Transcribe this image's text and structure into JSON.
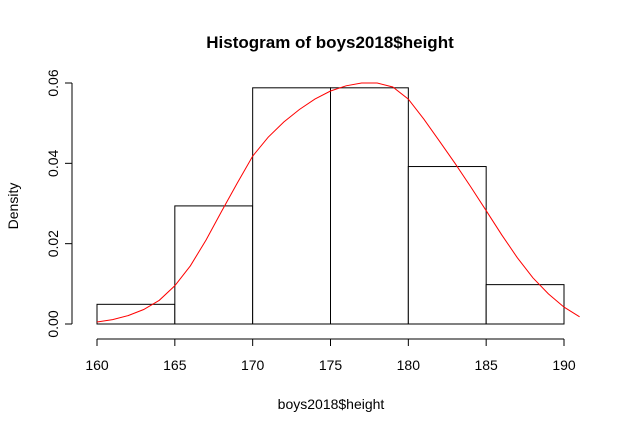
{
  "chart_data": {
    "type": "bar",
    "title": "Histogram of boys2018$height",
    "xlabel": "boys2018$height",
    "ylabel": "Density",
    "xlim": [
      159,
      191
    ],
    "ylim": [
      0,
      0.06
    ],
    "x_ticks": [
      "160",
      "165",
      "170",
      "175",
      "180",
      "185",
      "190"
    ],
    "y_ticks": [
      "0.00",
      "0.02",
      "0.04",
      "0.06"
    ],
    "bins": [
      {
        "from": 160,
        "to": 165,
        "density": 0.0049
      },
      {
        "from": 165,
        "to": 170,
        "density": 0.0294
      },
      {
        "from": 170,
        "to": 175,
        "density": 0.0588
      },
      {
        "from": 175,
        "to": 180,
        "density": 0.0588
      },
      {
        "from": 180,
        "to": 185,
        "density": 0.0392
      },
      {
        "from": 185,
        "to": 190,
        "density": 0.0098
      }
    ],
    "density_curve": {
      "color": "#ff0000",
      "points": [
        [
          160,
          0.0005
        ],
        [
          161,
          0.0011
        ],
        [
          162,
          0.0021
        ],
        [
          163,
          0.0036
        ],
        [
          164,
          0.0059
        ],
        [
          165,
          0.0095
        ],
        [
          166,
          0.0145
        ],
        [
          167,
          0.0209
        ],
        [
          168,
          0.028
        ],
        [
          169,
          0.035
        ],
        [
          170,
          0.0418
        ],
        [
          171,
          0.0465
        ],
        [
          172,
          0.0503
        ],
        [
          173,
          0.0534
        ],
        [
          174,
          0.056
        ],
        [
          175,
          0.058
        ],
        [
          176,
          0.0593
        ],
        [
          177,
          0.06
        ],
        [
          178,
          0.06
        ],
        [
          179,
          0.059
        ],
        [
          180,
          0.056
        ],
        [
          181,
          0.051
        ],
        [
          182,
          0.0455
        ],
        [
          183,
          0.04
        ],
        [
          184,
          0.0342
        ],
        [
          185,
          0.0282
        ],
        [
          186,
          0.0222
        ],
        [
          187,
          0.0165
        ],
        [
          188,
          0.0115
        ],
        [
          189,
          0.0075
        ],
        [
          190,
          0.0042
        ],
        [
          191,
          0.0018
        ]
      ]
    }
  }
}
